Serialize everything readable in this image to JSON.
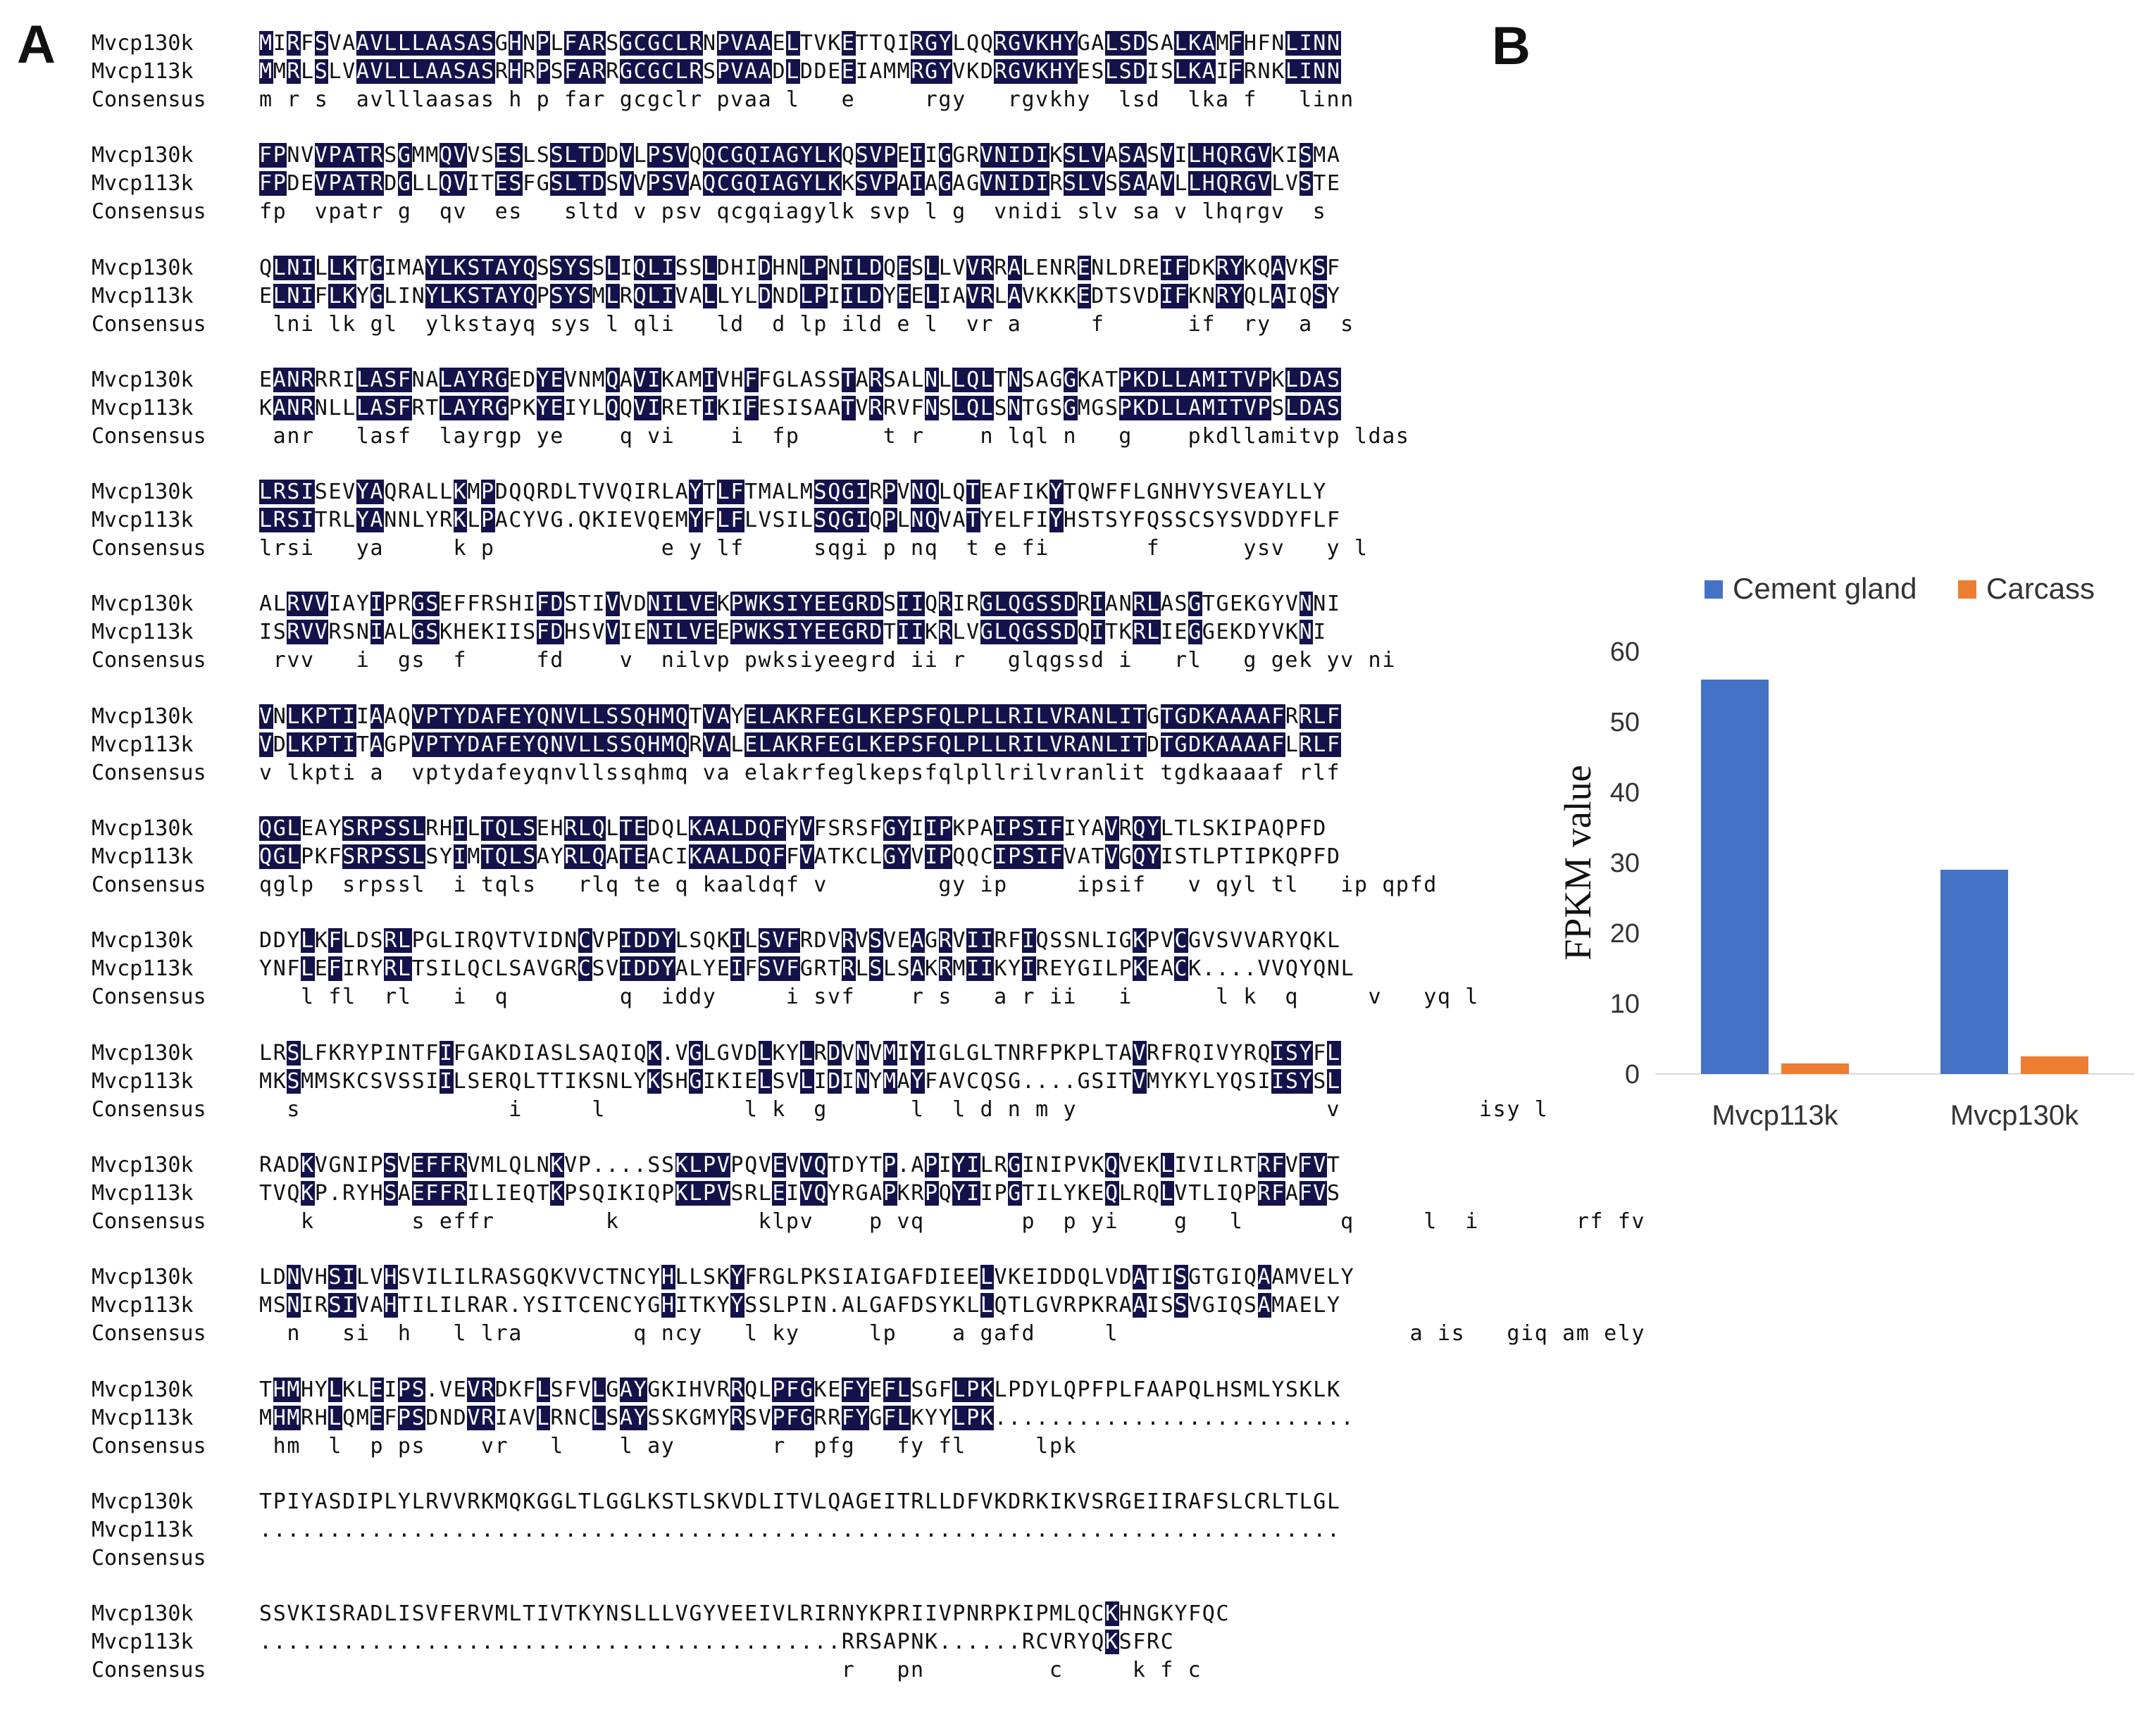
{
  "panels": {
    "a": "A",
    "b": "B"
  },
  "alignment": {
    "names": [
      "Mvcp130k",
      "Mvcp113k",
      "Consensus"
    ],
    "blocks": [
      [
        "MIRFSVAAVLLLAASASGHNPLFARSGCGCLRNPVAAELTVKETTQIRGYLQQRGVKHYGALSDSALKAMFHFNLINN",
        "MMRLSLVAVLLLAASASRHRPSFARRGCGCLRSPVAADLDDEEIAMMRGYVKDRGVKHYESLSDISLKAIFRNKLINN",
        "m r s  avlllaasas h p far gcgclr pvaa l   e     rgy   rgvkhy  lsd  lka f   linn"
      ],
      [
        "FPNVVPATRSGMMQVVSESLSSLTDDVLPSVQQCGQIAGYLKQSVPEIIGGRVNIDIKSLVASASVILHQRGVKISMA",
        "FPDEVPATRDGLLQVITESFGSLTDSVVPSVAQCGQIAGYLKKSVPAIAGAGVNIDIRSLVSSAAVLLHQRGVLVSTE",
        "fp  vpatr g  qv  es   sltd v psv qcgqiagylk svp l g  vnidi slv sa v lhqrgv  s  "
      ],
      [
        "QLNILLKTGIMAYLKSTAYQSSYSSLIQLISSLDHIDHNLPNILDQESLLVVRRALENRENLDREIFDKRYKQAVKSF",
        "ELNIFLKYGLINYLKSTAYQPSYSMLRQLIVALLYLDNDLPIILDYEELIAVRLAVKKKEDTSVDIFKNRYQLAIQSY",
        " lni lk gl  ylkstayq sys l qli   ld  d lp ild e l  vr a     f      if  ry  a  s "
      ],
      [
        "EANRRRILASFNALAYRGEDYEVNMQAVIKAMIVHFFGLASSTARSALNLLQLTNSAGGKATPKDLLAMITVPKLDAS",
        "KANRNLLLASFRTLAYRGPKYEIYLQQVIRETIKIFESISAATVRRVFNSLQLSNTGSGMGSPKDLLAMITVPSLDAS",
        " anr   lasf  layrgp ye    q vi    i  fp      t r    n lql n   g    pkdllamitvp ldas"
      ],
      [
        "LRSISEVYAQRALLKMPDQQRDLTVVQIRLAYTLFTMALMSQGIRPVNQLQTEAFIKYTQWFFLGNHVYSVEAYLLY",
        "LRSITRLYANNLYRKLPACYVG.QKIEVQEMYFLFLVSILSQGIQPLNQVATYELFIYHSTSYFQSSCSYSVDDYFLF",
        "lrsi   ya     k p            e y lf     sqgi p nq  t e fi       f      ysv   y l "
      ],
      [
        "ALRVVIAYIPRGSEFFRSHIFDSTIVVDNILVEKPWKSIYEEGRDSIIQRIRGLQGSSDRIANRLASGTGEKGYVNNI",
        "ISRVVRSNIALGSKHEKIISFDHSVVIENILVEEPWKSIYEEGRDTIIKRLVGLQGSSDQITKRLIEGGEKDYVKNI",
        " rvv   i  gs  f     fd    v  nilvp pwksiyeegrd ii r   glqgssd i   rl   g gek yv ni"
      ],
      [
        "VNLKPTIIAAQVPTYDAFEYQNVLLSSQHMQTVAYELAKRFEGLKEPSFQLPLLRILVRANLITGTGDKAAAAFRRLF",
        "VDLKPTITAGPVPTYDAFEYQNVLLSSQHMQRVALELAKRFEGLKEPSFQLPLLRILVRANLITDTGDKAAAAFLRLF",
        "v lkpti a  vptydafeyqnvllssqhmq va elakrfeglkepsfqlpllrilvranlit tgdkaaaaf rlf"
      ],
      [
        "QGLEAYSRPSSLRHILTQLSEHRLQLTEDQLKAALDQFYVFSRSFGYIIPKPAIPSIFIYAVRQYLTLSKIPAQPFD",
        "QGLPKFSRPSSLSYIMTQLSAYRLQATEACIKAALDQFFVATKCLGYVIPQQCIPSIFVATVGQYISTLPTIPKQPFD",
        "qglp  srpssl  i tqls   rlq te q kaaldqf v        gy ip     ipsif   v qyl tl   ip qpfd"
      ],
      [
        "DDYLKFLDSRLPGLIRQVTVIDNCVPIDDYLSQKILSVFRDVRVSVEAGRVIIRFIQSSNLIGKPVCGVSVVARYQKL",
        "YNFLEFIRYRLTSILQCLSAVGRCSVIDDYALYEIFSVFGRTRLSLSAKRMIIKYIREYGILPKEACK....VVQYQNL",
        "   l fl  rl   i  q        q  iddy     i svf    r s   a r ii   i      l k  q     v   yq l"
      ],
      [
        "LRSLFKRYPINTFIFGAKDIASLSAQIQK.VGLGVDLKYLRDVNVMIYIGLGLTNRFPKPLTAVRFRQIVYRQISYFL",
        "MKSMMSKCSVSSIILSERQLTTIKSNLYKSHGIKIELSVLIDINYMAYFAVCQSG....GSITVMYKYLYQSIISYSL",
        "  s               i     l          l k  g      l  l d n m y                  v          isy l"
      ],
      [
        "RADKVGNIPSVEFFRVMLQLNKVP....SSKLPVPQVEVVQTDYTP.APIYILRGINIPVKQVEKLIVILRTRFVFVT",
        "TVQKP.RYHSAEFFRILIEQTKPSQIKIQPKLPVSRLEIVQYRGAPKRPQYIIPGTILYKEQLRQLVTLIQPRFAFVS",
        "   k       s effr        k          klpv    p vq       p  p yi    g   l       q     l  i       rf fv "
      ],
      [
        "LDNVHSILVHSVILILRASGQKVVCTNCYHLLSKYFRGLPKSIAIGAFDIEELVKEIDDQLVDATISGTGIQAAMVELY",
        "MSNIRSIVAHTILILRAR.YSITCENCYGHITKYYSSLPIN.ALGAFDSYKLLQTLGVRPKRAAISSVGIQSAMAELY",
        "  n   si  h   l lra        q ncy   l ky     lp    a gafd     l                     a is   giq am ely"
      ],
      [
        "THMHYLKLEIPS.VEVRDKFLSFVLGAYGKIHVRRQLPFGKEFYEFLSGFLPKLPDYLQPFPLFAAPQLHSMLYSKLK",
        "MHMRHLQMEFPSDNDVRIAVLRNCLSAYSSKGMYRSVPFGRRFYGFLKYYLPK..........................",
        " hm  l  p ps    vr   l    l ay       r  pfg   fy fl     lpk"
      ],
      [
        "TPIYASDIPLYLRVVRKMQKGGLTLGGLKSTLSKVDLITVLQAGEITRLLDFVKDRKIKVSRGEIIRAFSLCRLTLGL",
        "..............................................................................",
        ""
      ],
      [
        "SSVKISRADLISVFERVMLTIVTKYNSLLLVGYVEEIVLRIRNYKPRIIVPNRPKIPMLQCKHNGKYFQC",
        "..........................................RRSAPNK......RCVRYQKSFRC",
        "                                          r   pn         c     k f c"
      ]
    ]
  },
  "chart_data": {
    "type": "bar",
    "categories": [
      "Mvcp113k",
      "Mvcp130k"
    ],
    "series": [
      {
        "name": "Cement gland",
        "color": "#4472c4",
        "values": [
          56,
          29
        ]
      },
      {
        "name": "Carcass",
        "color": "#ed7d31",
        "values": [
          1.5,
          2.5
        ]
      }
    ],
    "title": "",
    "xlabel": "",
    "ylabel": "FPKM value",
    "ylim": [
      0,
      60
    ],
    "yticks": [
      0,
      10,
      20,
      30,
      40,
      50,
      60
    ],
    "legend_position": "top"
  }
}
